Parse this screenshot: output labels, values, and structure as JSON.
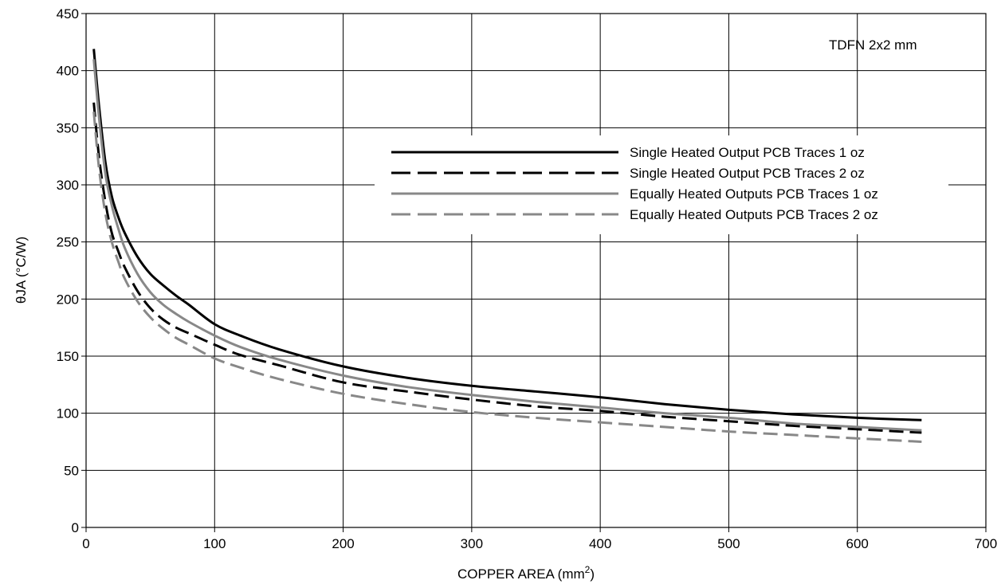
{
  "chart_data": {
    "type": "line",
    "annotation": "TDFN 2x2 mm",
    "xlabel": "COPPER AREA (mm",
    "xlabel_sup": "2",
    "xlabel_end": ")",
    "ylabel": "θJA (°C/W)",
    "xlim": [
      0,
      700
    ],
    "ylim": [
      0,
      450
    ],
    "xticks": [
      0,
      100,
      200,
      300,
      400,
      500,
      600,
      700
    ],
    "yticks": [
      0,
      50,
      100,
      150,
      200,
      250,
      300,
      350,
      400,
      450
    ],
    "grid": true,
    "legend_position": "upper-right",
    "series": [
      {
        "name": "Single Heated Output PCB Traces 1 oz",
        "color": "#000000",
        "dash": "solid",
        "x": [
          6,
          10,
          15,
          20,
          25,
          30,
          40,
          50,
          60,
          70,
          80,
          100,
          120,
          150,
          200,
          250,
          300,
          350,
          400,
          450,
          500,
          550,
          600,
          650
        ],
        "y": [
          419,
          370,
          320,
          290,
          272,
          258,
          237,
          222,
          212,
          203,
          195,
          178,
          168,
          156,
          141,
          131,
          124,
          119,
          114,
          108,
          103,
          99,
          96,
          94
        ]
      },
      {
        "name": "Single Heated Output PCB Traces 2 oz",
        "color": "#000000",
        "dash": "dashed",
        "x": [
          6,
          10,
          15,
          20,
          25,
          30,
          40,
          50,
          60,
          70,
          80,
          100,
          120,
          150,
          200,
          250,
          300,
          350,
          400,
          450,
          500,
          550,
          600,
          650
        ],
        "y": [
          372,
          325,
          285,
          258,
          242,
          228,
          207,
          192,
          182,
          175,
          170,
          160,
          151,
          142,
          127,
          119,
          112,
          106,
          102,
          97,
          93,
          89,
          86,
          83
        ]
      },
      {
        "name": "Equally Heated Outputs PCB Traces 1 oz",
        "color": "#888888",
        "dash": "solid",
        "x": [
          6,
          10,
          15,
          20,
          25,
          30,
          40,
          50,
          60,
          70,
          80,
          100,
          120,
          150,
          200,
          250,
          300,
          350,
          400,
          450,
          500,
          550,
          600,
          650
        ],
        "y": [
          410,
          360,
          310,
          282,
          262,
          245,
          222,
          206,
          195,
          187,
          180,
          168,
          158,
          147,
          133,
          123,
          116,
          110,
          105,
          100,
          96,
          91,
          88,
          85
        ]
      },
      {
        "name": "Equally Heated Outputs PCB Traces 2 oz",
        "color": "#888888",
        "dash": "dashed",
        "x": [
          6,
          10,
          15,
          20,
          25,
          30,
          40,
          50,
          60,
          70,
          80,
          100,
          120,
          150,
          200,
          250,
          300,
          350,
          400,
          450,
          500,
          550,
          600,
          650
        ],
        "y": [
          364,
          315,
          275,
          250,
          233,
          218,
          198,
          184,
          174,
          166,
          160,
          148,
          140,
          130,
          117,
          108,
          101,
          96,
          92,
          88,
          84,
          81,
          78,
          75
        ]
      }
    ]
  }
}
